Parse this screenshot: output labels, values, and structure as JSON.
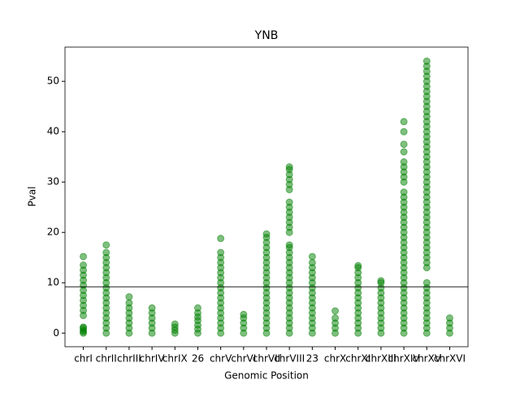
{
  "chart_data": {
    "type": "strip",
    "title": "YNB",
    "x_label": "Genomic Position",
    "y_label": "Pval",
    "color": "#008000",
    "categories": [
      "chrI",
      "chrII",
      "chrIII",
      "chrIV",
      "chrIX",
      "26",
      "chrV",
      "chrVI",
      "chrVII",
      "chrVIII",
      "23",
      "chrX",
      "chrXI",
      "chrXIII",
      "chrXIV",
      "chrXV",
      "chrXVI"
    ],
    "values": [
      [
        0,
        0.3,
        0.6,
        1,
        1.2,
        3.5,
        4.5,
        5.5,
        6.5,
        7.5,
        8.5,
        9.5,
        10.5,
        11.5,
        12.5,
        13.5,
        15.2
      ],
      [
        0,
        1,
        2,
        3,
        4,
        5,
        6,
        7,
        8,
        9,
        10,
        11,
        12,
        13,
        14,
        15,
        16,
        17.5
      ],
      [
        0,
        1,
        2,
        3,
        4,
        5,
        6,
        7.2
      ],
      [
        0,
        1,
        2,
        3,
        4,
        5
      ],
      [
        0,
        0.6,
        1.2,
        1.8
      ],
      [
        0,
        0.8,
        1.6,
        2.5,
        3.2,
        4,
        5
      ],
      [
        0,
        1,
        2,
        3,
        4,
        5,
        6,
        7,
        8,
        9,
        10,
        11,
        12,
        13,
        14,
        15,
        16,
        18.8
      ],
      [
        0,
        1,
        2,
        3,
        3.7
      ],
      [
        0,
        1,
        2,
        3,
        4,
        5,
        6,
        7,
        8,
        9,
        10,
        11,
        12,
        13,
        14,
        15,
        16,
        17,
        18,
        19,
        19.7
      ],
      [
        0,
        1,
        2,
        3,
        4,
        5,
        6,
        7,
        8,
        9,
        10,
        11,
        12,
        13,
        14,
        15,
        16,
        17,
        17.5,
        20,
        21,
        22,
        23,
        24,
        25,
        26,
        28.5,
        29.5,
        30.5,
        31.5,
        32.5,
        33
      ],
      [
        0,
        1,
        2,
        3,
        4,
        5,
        6,
        7,
        8,
        9,
        10,
        11,
        12,
        13,
        14,
        15.2
      ],
      [
        0,
        1,
        2,
        3,
        4.4
      ],
      [
        0,
        1,
        2,
        3,
        4,
        5,
        6,
        7,
        8,
        9,
        10,
        11,
        12,
        13,
        13.4
      ],
      [
        0,
        1,
        2,
        3,
        4,
        5,
        6,
        7,
        8,
        9,
        10,
        10.4
      ],
      [
        0,
        1,
        2,
        3,
        4,
        5,
        6,
        7,
        8,
        9,
        10,
        11,
        12,
        13,
        14,
        15,
        16,
        17,
        18,
        19,
        20,
        21,
        22,
        23,
        24,
        25,
        26,
        27,
        28,
        30,
        31,
        32,
        33,
        34,
        36,
        37.5,
        40,
        42
      ],
      [
        0,
        1,
        2,
        3,
        4,
        5,
        6,
        7,
        8,
        9,
        10,
        13,
        14,
        15,
        16,
        17,
        18,
        19,
        20,
        21,
        22,
        23,
        24,
        25,
        26,
        27,
        28,
        29,
        30,
        31,
        32,
        33,
        34,
        35,
        36,
        37,
        38,
        39,
        40,
        41,
        42,
        43,
        44,
        45,
        46,
        47,
        48,
        49,
        50,
        51,
        52,
        53,
        54
      ],
      [
        0,
        1,
        2,
        3
      ]
    ],
    "threshold": 9.2,
    "ylim": [
      -2.7,
      56.8
    ],
    "yticks": [
      0,
      10,
      20,
      30,
      40,
      50
    ]
  }
}
